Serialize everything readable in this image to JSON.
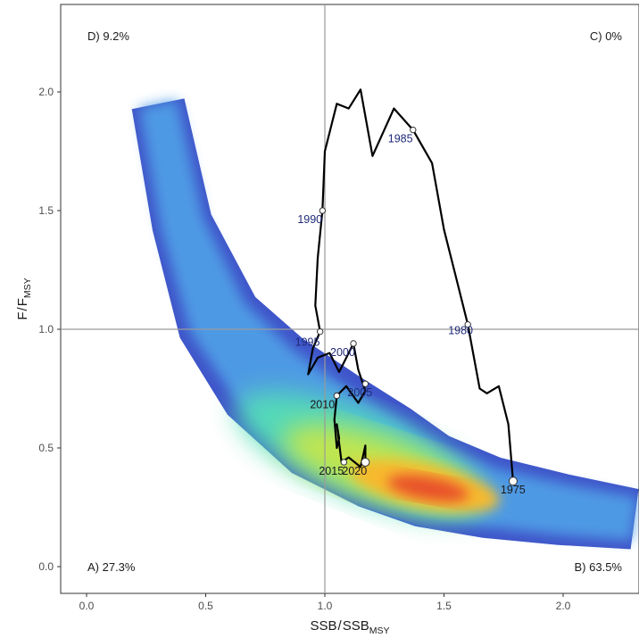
{
  "chart_data": {
    "type": "phase-plot",
    "xlabel": {
      "main": "SSB",
      "sep": "/",
      "base": "SSB",
      "sub": "MSY"
    },
    "ylabel": {
      "main": "F",
      "sep": "/",
      "base": "F",
      "sub": "MSY"
    },
    "xlim": [
      -0.1,
      2.3
    ],
    "ylim": [
      -0.1,
      2.35
    ],
    "xticks": [
      "0.0",
      "0.5",
      "1.0",
      "1.5",
      "2.0"
    ],
    "yticks": [
      "0.0",
      "0.5",
      "1.0",
      "1.5",
      "2.0"
    ],
    "reference_lines": {
      "x": 1.0,
      "y": 1.0
    },
    "quadrants": [
      {
        "id": "A",
        "label": "A) 27.3%"
      },
      {
        "id": "B",
        "label": "B) 63.5%"
      },
      {
        "id": "C",
        "label": "C) 0%"
      },
      {
        "id": "D",
        "label": "D) 9.2%"
      }
    ],
    "uncertainty_density": {
      "centerline": [
        [
          0.3,
          1.95
        ],
        [
          0.4,
          1.45
        ],
        [
          0.55,
          1.05
        ],
        [
          0.75,
          0.8
        ],
        [
          1.0,
          0.6
        ],
        [
          1.25,
          0.46
        ],
        [
          1.45,
          0.36
        ],
        [
          1.7,
          0.29
        ],
        [
          2.0,
          0.24
        ],
        [
          2.3,
          0.2
        ]
      ],
      "peak": [
        1.42,
        0.34
      ],
      "colors": [
        "#3f55c9",
        "#4f9de6",
        "#55e0b5",
        "#c7e64a",
        "#f7b92e",
        "#e8512a"
      ]
    },
    "trajectory": [
      [
        1.79,
        0.36
      ],
      [
        1.77,
        0.6
      ],
      [
        1.73,
        0.76
      ],
      [
        1.68,
        0.73
      ],
      [
        1.65,
        0.75
      ],
      [
        1.6,
        1.02
      ],
      [
        1.55,
        1.22
      ],
      [
        1.5,
        1.42
      ],
      [
        1.45,
        1.7
      ],
      [
        1.37,
        1.84
      ],
      [
        1.29,
        1.93
      ],
      [
        1.2,
        1.73
      ],
      [
        1.15,
        2.01
      ],
      [
        1.1,
        1.93
      ],
      [
        1.05,
        1.95
      ],
      [
        1.0,
        1.75
      ],
      [
        0.99,
        1.5
      ],
      [
        0.97,
        1.3
      ],
      [
        0.96,
        1.1
      ],
      [
        0.98,
        0.99
      ],
      [
        0.95,
        0.92
      ],
      [
        0.93,
        0.81
      ],
      [
        0.97,
        0.88
      ],
      [
        1.02,
        0.9
      ],
      [
        1.06,
        0.82
      ],
      [
        1.12,
        0.94
      ],
      [
        1.14,
        0.83
      ],
      [
        1.16,
        0.77
      ],
      [
        1.17,
        0.74
      ],
      [
        1.14,
        0.69
      ],
      [
        1.09,
        0.76
      ],
      [
        1.05,
        0.72
      ],
      [
        1.04,
        0.62
      ],
      [
        1.05,
        0.5
      ],
      [
        1.06,
        0.54
      ],
      [
        1.05,
        0.6
      ],
      [
        1.07,
        0.44
      ],
      [
        1.1,
        0.46
      ],
      [
        1.15,
        0.42
      ],
      [
        1.17,
        0.51
      ],
      [
        1.17,
        0.44
      ]
    ],
    "year_points": [
      {
        "year": "1975",
        "x": 1.79,
        "y": 0.36,
        "color": "black"
      },
      {
        "year": "1980",
        "x": 1.6,
        "y": 1.02,
        "color": "blue"
      },
      {
        "year": "1985",
        "x": 1.37,
        "y": 1.84,
        "color": "blue"
      },
      {
        "year": "1990",
        "x": 0.99,
        "y": 1.5,
        "color": "blue"
      },
      {
        "year": "1995",
        "x": 0.98,
        "y": 0.99,
        "color": "blue"
      },
      {
        "year": "2000",
        "x": 1.12,
        "y": 0.94,
        "color": "blue"
      },
      {
        "year": "2005",
        "x": 1.17,
        "y": 0.77,
        "color": "blue"
      },
      {
        "year": "2010",
        "x": 1.05,
        "y": 0.72,
        "color": "black"
      },
      {
        "year": "2015",
        "x": 1.08,
        "y": 0.44,
        "color": "black"
      },
      {
        "year": "2020",
        "x": 1.17,
        "y": 0.44,
        "color": "black"
      }
    ],
    "grid": false
  }
}
